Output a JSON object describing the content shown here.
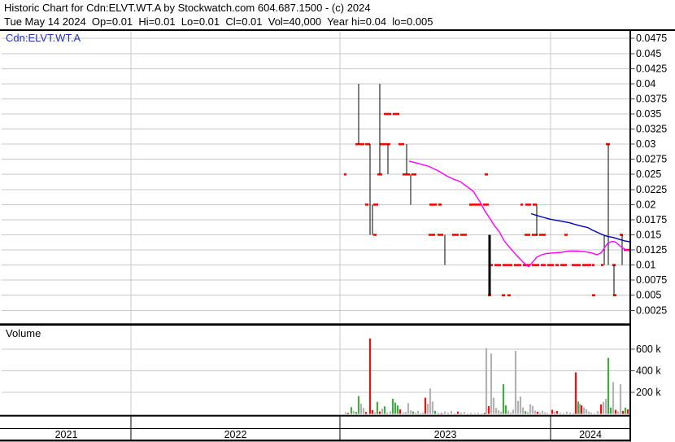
{
  "header": {
    "line1": "Historic Chart for Cdn:ELVT.WT.A by Stockwatch.com 604.687.1500 - (c) 2024",
    "line2": "Tue May 14 2024  Op=0.01  Hi=0.01  Lo=0.01  Cl=0.01  Vol=40,000  Year hi=0.04  lo=0.005"
  },
  "symbol_label": "Cdn:ELVT.WT.A",
  "volume_panel_label": "Volume",
  "colors": {
    "grid": "#c9c9c9",
    "border": "#000000",
    "price_bar": "#000000",
    "trade_mark": "#ff0000",
    "ma_fast": "#ff00ff",
    "ma_slow": "#0000bb",
    "vol_up": "#44aa44",
    "vol_down": "#ee1111",
    "vol_neutral": "#b3b3b3",
    "tick": "#444444",
    "symbol_text": "#2233bb"
  },
  "chart_data": {
    "type": "bar",
    "title": "Cdn:ELVT.WT.A historic price with volume",
    "price_axis_ticks": [
      "0.0475",
      "0.045",
      "0.0425",
      "0.04",
      "0.0375",
      "0.035",
      "0.0325",
      "0.03",
      "0.0275",
      "0.025",
      "0.0225",
      "0.02",
      "0.0175",
      "0.015",
      "0.0125",
      "0.01",
      "0.0075",
      "0.005",
      "0.0025"
    ],
    "volume_axis_ticks": [
      {
        "label": "600 k",
        "k": 600
      },
      {
        "label": "400 k",
        "k": 400
      },
      {
        "label": "200 k",
        "k": 200
      }
    ],
    "years": [
      {
        "label": "2021",
        "from": 2,
        "to": 161
      },
      {
        "label": "2022",
        "from": 161,
        "to": 418
      },
      {
        "label": "2023",
        "from": 418,
        "to": 677
      },
      {
        "label": "2024",
        "from": 677,
        "to": 775
      }
    ],
    "year_grid_x": [
      161,
      418,
      677
    ],
    "price_range_bars": [
      [
        441,
        0.04,
        0.03
      ],
      [
        455,
        0.03,
        0.015
      ],
      [
        458,
        0.02,
        0.015
      ],
      [
        467,
        0.04,
        0.025
      ],
      [
        477,
        0.03,
        0.025
      ],
      [
        500,
        0.03,
        0.025
      ],
      [
        505,
        0.025,
        0.02
      ],
      [
        547,
        0.015,
        0.01
      ],
      [
        602,
        0.015,
        0.005,
        2.6
      ],
      [
        660,
        0.02,
        0.015
      ],
      [
        743,
        0.015,
        0.01
      ],
      [
        748,
        0.03,
        0.01
      ],
      [
        755,
        0.01,
        0.005
      ],
      [
        765,
        0.015,
        0.01
      ]
    ],
    "trade_marks": [
      [
        423,
        426,
        0.025
      ],
      [
        437,
        448,
        0.03
      ],
      [
        449,
        455,
        0.03
      ],
      [
        467,
        480,
        0.03
      ],
      [
        490,
        497,
        0.03
      ],
      [
        745,
        750,
        0.03
      ],
      [
        472,
        481,
        0.035
      ],
      [
        483,
        491,
        0.035
      ],
      [
        449,
        453,
        0.02
      ],
      [
        459,
        465,
        0.02
      ],
      [
        528,
        537,
        0.02
      ],
      [
        539,
        543,
        0.02
      ],
      [
        577,
        592,
        0.02
      ],
      [
        594,
        601,
        0.02
      ],
      [
        640,
        643,
        0.02
      ],
      [
        646,
        653,
        0.02
      ],
      [
        655,
        660,
        0.02
      ],
      [
        464,
        470,
        0.025
      ],
      [
        495,
        504,
        0.025
      ],
      [
        506,
        512,
        0.025
      ],
      [
        596,
        600,
        0.025
      ],
      [
        459,
        463,
        0.015
      ],
      [
        527,
        535,
        0.015
      ],
      [
        538,
        545,
        0.015
      ],
      [
        556,
        564,
        0.015
      ],
      [
        566,
        574,
        0.015
      ],
      [
        645,
        652,
        0.015
      ],
      [
        654,
        661,
        0.015
      ],
      [
        663,
        671,
        0.015
      ],
      [
        694,
        698,
        0.015
      ],
      [
        762,
        766,
        0.015
      ],
      [
        601,
        606,
        0.01
      ],
      [
        608,
        616,
        0.01
      ],
      [
        618,
        630,
        0.01
      ],
      [
        632,
        641,
        0.01
      ],
      [
        643,
        652,
        0.01
      ],
      [
        654,
        663,
        0.01
      ],
      [
        665,
        671,
        0.01
      ],
      [
        673,
        681,
        0.01
      ],
      [
        683,
        687,
        0.01
      ],
      [
        689,
        697,
        0.01
      ],
      [
        703,
        714,
        0.01
      ],
      [
        716,
        727,
        0.01
      ],
      [
        728,
        731,
        0.01
      ],
      [
        739,
        742,
        0.01
      ],
      [
        753,
        757,
        0.01
      ],
      [
        767,
        775,
        0.0125
      ],
      [
        600,
        604,
        0.005
      ],
      [
        617,
        621,
        0.005
      ],
      [
        624,
        628,
        0.005
      ],
      [
        728,
        732,
        0.005
      ],
      [
        754,
        758,
        0.005
      ]
    ],
    "ma_fast_points": [
      [
        503,
        0.0272
      ],
      [
        515,
        0.0268
      ],
      [
        528,
        0.0263
      ],
      [
        540,
        0.0255
      ],
      [
        550,
        0.0247
      ],
      [
        558,
        0.0242
      ],
      [
        566,
        0.0238
      ],
      [
        574,
        0.023
      ],
      [
        582,
        0.0222
      ],
      [
        590,
        0.0205
      ],
      [
        596,
        0.019
      ],
      [
        602,
        0.0178
      ],
      [
        608,
        0.0165
      ],
      [
        614,
        0.0155
      ],
      [
        620,
        0.014
      ],
      [
        628,
        0.0127
      ],
      [
        636,
        0.0115
      ],
      [
        643,
        0.0105
      ],
      [
        650,
        0.0097
      ],
      [
        655,
        0.0105
      ],
      [
        660,
        0.0113
      ],
      [
        666,
        0.0117
      ],
      [
        672,
        0.0119
      ],
      [
        680,
        0.012
      ],
      [
        690,
        0.0121
      ],
      [
        700,
        0.0123
      ],
      [
        710,
        0.0123
      ],
      [
        720,
        0.0122
      ],
      [
        728,
        0.012
      ],
      [
        734,
        0.0117
      ],
      [
        739,
        0.012
      ],
      [
        744,
        0.013
      ],
      [
        748,
        0.0137
      ],
      [
        753,
        0.0139
      ],
      [
        757,
        0.0138
      ],
      [
        762,
        0.0132
      ],
      [
        766,
        0.0128
      ],
      [
        770,
        0.0125
      ],
      [
        775,
        0.0123
      ]
    ],
    "ma_slow_points": [
      [
        653,
        0.0185
      ],
      [
        660,
        0.0182
      ],
      [
        668,
        0.0179
      ],
      [
        676,
        0.0176
      ],
      [
        684,
        0.0174
      ],
      [
        692,
        0.0172
      ],
      [
        700,
        0.017
      ],
      [
        708,
        0.0167
      ],
      [
        716,
        0.0164
      ],
      [
        723,
        0.0162
      ],
      [
        728,
        0.0158
      ],
      [
        733,
        0.0155
      ],
      [
        738,
        0.0152
      ],
      [
        743,
        0.0149
      ],
      [
        748,
        0.0147
      ],
      [
        753,
        0.0146
      ],
      [
        758,
        0.0144
      ],
      [
        763,
        0.0142
      ],
      [
        768,
        0.014
      ],
      [
        772,
        0.0139
      ],
      [
        775,
        0.0138
      ]
    ],
    "volume_bars_k": [
      [
        425,
        15,
        "n"
      ],
      [
        428,
        10,
        "r"
      ],
      [
        432,
        62,
        "g"
      ],
      [
        435,
        26,
        "n"
      ],
      [
        438,
        18,
        "g"
      ],
      [
        441,
        165,
        "g"
      ],
      [
        444,
        95,
        "n"
      ],
      [
        447,
        55,
        "n"
      ],
      [
        450,
        18,
        "r"
      ],
      [
        455,
        700,
        "r"
      ],
      [
        458,
        36,
        "r"
      ],
      [
        461,
        14,
        "n"
      ],
      [
        464,
        112,
        "g"
      ],
      [
        467,
        22,
        "r"
      ],
      [
        470,
        48,
        "n"
      ],
      [
        473,
        70,
        "g"
      ],
      [
        476,
        14,
        "n"
      ],
      [
        480,
        24,
        "n"
      ],
      [
        483,
        140,
        "g"
      ],
      [
        486,
        105,
        "g"
      ],
      [
        489,
        78,
        "g"
      ],
      [
        492,
        42,
        "r"
      ],
      [
        496,
        14,
        "n"
      ],
      [
        499,
        18,
        "n"
      ],
      [
        502,
        100,
        "n"
      ],
      [
        505,
        32,
        "n"
      ],
      [
        508,
        22,
        "g"
      ],
      [
        511,
        12,
        "n"
      ],
      [
        514,
        28,
        "n"
      ],
      [
        517,
        8,
        "n"
      ],
      [
        520,
        12,
        "n"
      ],
      [
        523,
        150,
        "r"
      ],
      [
        526,
        95,
        "n"
      ],
      [
        529,
        235,
        "n"
      ],
      [
        532,
        115,
        "n"
      ],
      [
        535,
        28,
        "g"
      ],
      [
        539,
        12,
        "n"
      ],
      [
        543,
        8,
        "r"
      ],
      [
        547,
        22,
        "n"
      ],
      [
        551,
        12,
        "n"
      ],
      [
        555,
        28,
        "n"
      ],
      [
        559,
        8,
        "n"
      ],
      [
        563,
        22,
        "r"
      ],
      [
        567,
        12,
        "n"
      ],
      [
        571,
        18,
        "n"
      ],
      [
        575,
        6,
        "n"
      ],
      [
        579,
        10,
        "n"
      ],
      [
        584,
        8,
        "n"
      ],
      [
        588,
        12,
        "n"
      ],
      [
        592,
        6,
        "n"
      ],
      [
        596,
        10,
        "r"
      ],
      [
        598,
        610,
        "n"
      ],
      [
        601,
        72,
        "r"
      ],
      [
        604,
        560,
        "n"
      ],
      [
        607,
        150,
        "n"
      ],
      [
        610,
        55,
        "n"
      ],
      [
        613,
        35,
        "n"
      ],
      [
        616,
        20,
        "n"
      ],
      [
        619,
        275,
        "g"
      ],
      [
        622,
        80,
        "g"
      ],
      [
        625,
        30,
        "n"
      ],
      [
        628,
        14,
        "n"
      ],
      [
        631,
        40,
        "n"
      ],
      [
        634,
        585,
        "n"
      ],
      [
        637,
        120,
        "n"
      ],
      [
        640,
        160,
        "n"
      ],
      [
        643,
        60,
        "n"
      ],
      [
        646,
        25,
        "g"
      ],
      [
        649,
        18,
        "n"
      ],
      [
        652,
        90,
        "n"
      ],
      [
        655,
        75,
        "n"
      ],
      [
        658,
        30,
        "n"
      ],
      [
        661,
        20,
        "r"
      ],
      [
        664,
        12,
        "n"
      ],
      [
        667,
        30,
        "n"
      ],
      [
        670,
        15,
        "n"
      ],
      [
        673,
        10,
        "n"
      ],
      [
        679,
        38,
        "r"
      ],
      [
        682,
        22,
        "n"
      ],
      [
        685,
        28,
        "r"
      ],
      [
        689,
        12,
        "n"
      ],
      [
        693,
        8,
        "n"
      ],
      [
        697,
        20,
        "n"
      ],
      [
        701,
        14,
        "n"
      ],
      [
        705,
        10,
        "n"
      ],
      [
        708,
        385,
        "r"
      ],
      [
        711,
        115,
        "g"
      ],
      [
        713,
        95,
        "n"
      ],
      [
        715,
        80,
        "r"
      ],
      [
        718,
        60,
        "n"
      ],
      [
        721,
        45,
        "n"
      ],
      [
        724,
        20,
        "n"
      ],
      [
        727,
        12,
        "n"
      ],
      [
        731,
        8,
        "n"
      ],
      [
        735,
        25,
        "n"
      ],
      [
        739,
        88,
        "r"
      ],
      [
        742,
        112,
        "n"
      ],
      [
        745,
        140,
        "n"
      ],
      [
        748,
        520,
        "g"
      ],
      [
        751,
        58,
        "g"
      ],
      [
        754,
        295,
        "n"
      ],
      [
        757,
        38,
        "r"
      ],
      [
        760,
        22,
        "n"
      ],
      [
        763,
        275,
        "n"
      ],
      [
        766,
        28,
        "r"
      ],
      [
        769,
        58,
        "g"
      ],
      [
        772,
        42,
        "r"
      ]
    ]
  }
}
